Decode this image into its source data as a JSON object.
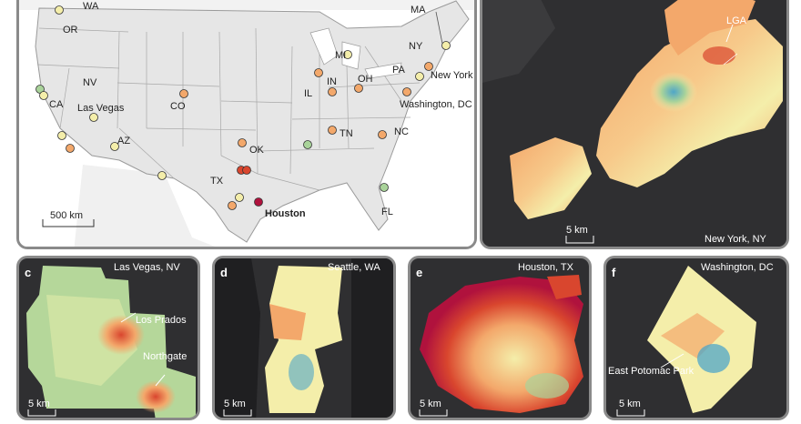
{
  "us_map": {
    "state_labels": [
      "WA",
      "OR",
      "NV",
      "CA",
      "AZ",
      "CO",
      "TX",
      "OK",
      "IL",
      "IN",
      "MI",
      "OH",
      "PA",
      "NY",
      "MA",
      "TN",
      "NC",
      "FL"
    ],
    "city_labels": [
      "Las Vegas",
      "Houston",
      "New York",
      "Washington, DC"
    ],
    "scale": "500 km"
  },
  "nyc": {
    "title": "New York, NY",
    "airport": "LGA",
    "scale": "5 km"
  },
  "panels": [
    {
      "letter": "c",
      "title": "Las Vegas, NV",
      "annotations": [
        "Los Prados",
        "Northgate"
      ],
      "scale": "5 km"
    },
    {
      "letter": "d",
      "title": "Seattle, WA",
      "annotations": [],
      "scale": "5 km"
    },
    {
      "letter": "e",
      "title": "Houston, TX",
      "annotations": [],
      "scale": "5 km"
    },
    {
      "letter": "f",
      "title": "Washington, DC",
      "annotations": [
        "East Potomac Park"
      ],
      "scale": "5 km"
    }
  ],
  "colors": {
    "cool": "#4fa6c8",
    "green": "#a9d39a",
    "yellow": "#f4eeaa",
    "orange": "#f3a86b",
    "red": "#d9462e",
    "crimson": "#b0123d",
    "dark_bg": "#2f2f31",
    "land": "#e6e6e6"
  }
}
